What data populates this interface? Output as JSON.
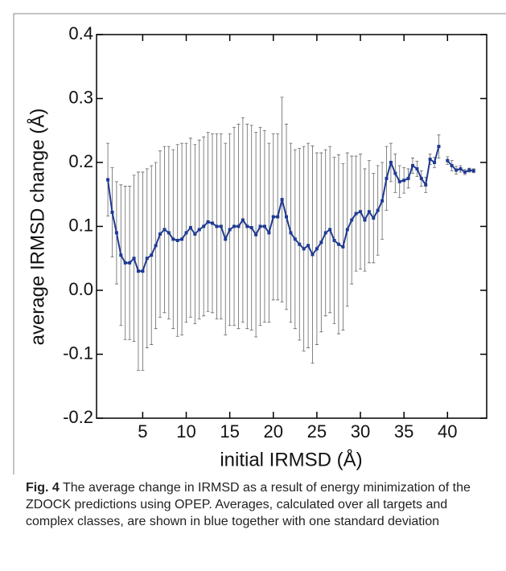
{
  "chart_data": {
    "type": "line",
    "x_label": "initial IRMSD (Å)",
    "y_label": "average IRMSD change (Å)",
    "x": [
      1,
      1.5,
      2,
      2.5,
      3,
      3.5,
      4,
      4.5,
      5,
      5.5,
      6,
      6.5,
      7,
      7.5,
      8,
      8.5,
      9,
      9.5,
      10,
      10.5,
      11,
      11.5,
      12,
      12.5,
      13,
      13.5,
      14,
      14.5,
      15,
      15.5,
      16,
      16.5,
      17,
      17.5,
      18,
      18.5,
      19,
      19.5,
      20,
      20.5,
      21,
      21.5,
      22,
      22.5,
      23,
      23.5,
      24,
      24.5,
      25,
      25.5,
      26,
      26.5,
      27,
      27.5,
      28,
      28.5,
      29,
      29.5,
      30,
      30.5,
      31,
      31.5,
      32,
      32.5,
      33,
      33.5,
      34,
      34.5,
      35,
      35.5,
      36,
      36.5,
      37,
      37.5,
      38,
      38.5,
      39,
      39.5,
      40,
      40.5,
      41,
      41.5,
      42,
      42.5,
      43
    ],
    "series": [
      {
        "color": "#1f3a93",
        "values": [
          0.173,
          0.122,
          0.09,
          0.055,
          0.043,
          0.043,
          0.05,
          0.03,
          0.03,
          0.05,
          0.055,
          0.07,
          0.088,
          0.095,
          0.09,
          0.08,
          0.078,
          0.08,
          0.09,
          0.098,
          0.088,
          0.095,
          0.1,
          0.107,
          0.105,
          0.1,
          0.1,
          0.08,
          0.095,
          0.1,
          0.1,
          0.11,
          0.1,
          0.098,
          0.087,
          0.1,
          0.1,
          0.09,
          0.115,
          0.115,
          0.142,
          0.115,
          0.09,
          0.08,
          0.072,
          0.065,
          0.07,
          0.056,
          0.065,
          0.075,
          0.09,
          0.095,
          0.078,
          0.072,
          0.068,
          0.095,
          0.11,
          0.12,
          0.123,
          0.11,
          0.123,
          0.113,
          0.125,
          0.14,
          0.175,
          0.2,
          0.183,
          0.17,
          0.172,
          0.175,
          0.195,
          0.19,
          0.175,
          0.165,
          0.205,
          0.2,
          0.225,
          null,
          0.203,
          0.195,
          0.188,
          0.19,
          0.185,
          0.188,
          0.187
        ],
        "errors": [
          0.057,
          0.07,
          0.08,
          0.11,
          0.12,
          0.12,
          0.13,
          0.155,
          0.155,
          0.14,
          0.14,
          0.13,
          0.13,
          0.13,
          0.135,
          0.14,
          0.15,
          0.15,
          0.14,
          0.14,
          0.14,
          0.14,
          0.14,
          0.14,
          0.14,
          0.145,
          0.145,
          0.15,
          0.15,
          0.155,
          0.16,
          0.16,
          0.16,
          0.16,
          0.16,
          0.155,
          0.15,
          0.14,
          0.13,
          0.13,
          0.16,
          0.145,
          0.14,
          0.14,
          0.15,
          0.16,
          0.16,
          0.17,
          0.15,
          0.14,
          0.13,
          0.13,
          0.13,
          0.14,
          0.13,
          0.12,
          0.1,
          0.09,
          0.09,
          0.08,
          0.08,
          0.07,
          0.07,
          0.06,
          0.05,
          0.03,
          0.03,
          0.025,
          0.02,
          0.015,
          0.012,
          0.012,
          0.012,
          0.012,
          0.008,
          0.008,
          0.018,
          null,
          0.006,
          0.008,
          0.006,
          0.005,
          0.004,
          0.003,
          0.003
        ]
      }
    ],
    "xlim": [
      -0.3,
      44.5
    ],
    "ylim": [
      -0.2,
      0.4
    ],
    "xticks": [
      5,
      10,
      15,
      20,
      25,
      30,
      35,
      40
    ],
    "yticks": [
      0.4,
      0.3,
      0.2,
      0.1,
      {
        "value": 0,
        "label": "0.0"
      },
      -0.1,
      -0.2
    ],
    "caption_label": "Fig. 4",
    "caption_text": "The average change in IRMSD as a result of energy minimization of the ZDOCK predictions using OPEP. Averages, calculated over all targets and complex classes, are shown in blue together with one standard deviation"
  }
}
